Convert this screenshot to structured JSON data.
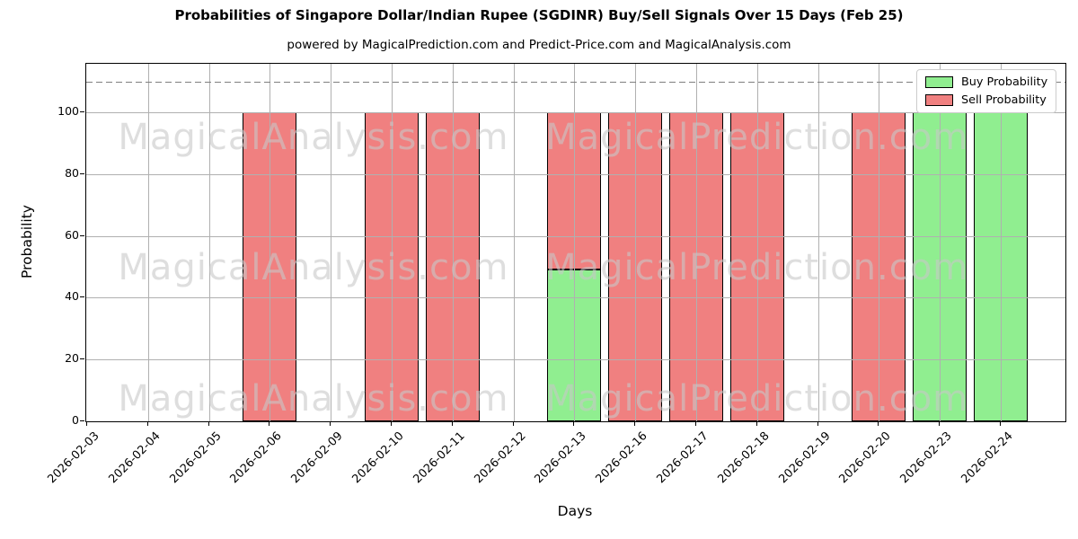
{
  "title": "Probabilities of Singapore Dollar/Indian Rupee (SGDINR) Buy/Sell Signals Over 15 Days (Feb 25)",
  "subtitle": "powered by MagicalPrediction.com and Predict-Price.com and MagicalAnalysis.com",
  "watermarks": {
    "left_text": "MagicalAnalysis.com",
    "right_text": "MagicalPrediction.com"
  },
  "colors": {
    "buy": "#90ee90",
    "sell": "#f08080",
    "bar_edge": "#000000",
    "grid": "#b0b0b0",
    "dashed_line": "#7f7f7f",
    "legend_border": "#cccccc"
  },
  "chart_data": {
    "type": "bar",
    "stacked": true,
    "title": "Probabilities of Singapore Dollar/Indian Rupee (SGDINR) Buy/Sell Signals Over 15 Days (Feb 25)",
    "xlabel": "Days",
    "ylabel": "Probability",
    "categories": [
      "2026-02-03",
      "2026-02-04",
      "2026-02-05",
      "2026-02-06",
      "2026-02-09",
      "2026-02-10",
      "2026-02-11",
      "2026-02-12",
      "2026-02-13",
      "2026-02-16",
      "2026-02-17",
      "2026-02-18",
      "2026-02-19",
      "2026-02-20",
      "2026-02-23",
      "2026-02-24"
    ],
    "series": [
      {
        "name": "Buy Probability",
        "color": "#90ee90",
        "values": [
          0,
          0,
          0,
          0,
          0,
          0,
          0,
          0,
          49,
          0,
          0,
          0,
          0,
          0,
          100,
          100
        ]
      },
      {
        "name": "Sell Probability",
        "color": "#f08080",
        "values": [
          0,
          0,
          0,
          100,
          0,
          100,
          100,
          0,
          51,
          100,
          100,
          100,
          0,
          100,
          0,
          0
        ]
      }
    ],
    "yticks": [
      0,
      20,
      40,
      60,
      80,
      100
    ],
    "ylim": [
      0,
      115.7
    ],
    "dashed_line_y": 110,
    "grid": true,
    "legend_position": "upper right"
  }
}
